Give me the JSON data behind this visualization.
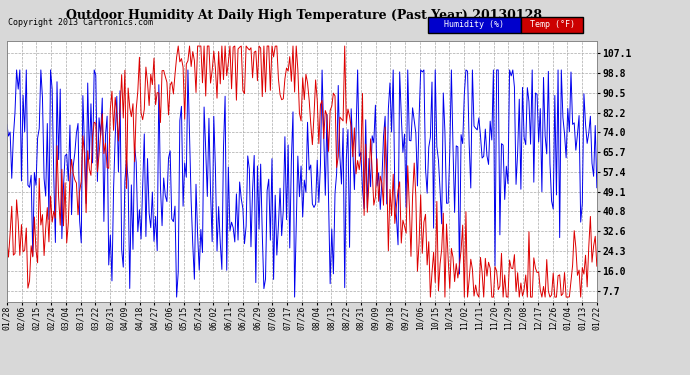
{
  "title": "Outdoor Humidity At Daily High Temperature (Past Year) 20130128",
  "copyright": "Copyright 2013 Cartronics.com",
  "yticks": [
    107.1,
    98.8,
    90.5,
    82.2,
    74.0,
    65.7,
    57.4,
    49.1,
    40.8,
    32.6,
    24.3,
    16.0,
    7.7
  ],
  "ylim": [
    3.0,
    112.0
  ],
  "bg_color": "#d8d8d8",
  "plot_bg_color": "#ffffff",
  "grid_color": "#aaaaaa",
  "humidity_color": "#0000ee",
  "temp_color": "#dd0000",
  "legend_humidity_bg": "#0000cc",
  "legend_temp_bg": "#cc0000",
  "xtick_labels": [
    "01/28",
    "02/06",
    "02/15",
    "02/24",
    "03/04",
    "03/13",
    "03/22",
    "03/31",
    "04/09",
    "04/18",
    "04/27",
    "05/06",
    "05/15",
    "05/24",
    "06/02",
    "06/11",
    "06/20",
    "06/29",
    "07/08",
    "07/17",
    "07/26",
    "08/04",
    "08/13",
    "08/22",
    "08/31",
    "09/09",
    "09/18",
    "09/27",
    "10/06",
    "10/15",
    "10/24",
    "11/02",
    "11/11",
    "11/20",
    "11/29",
    "12/08",
    "12/17",
    "12/26",
    "01/04",
    "01/13",
    "01/22"
  ],
  "num_points": 366,
  "temp_seed": 10,
  "hum_seed": 20
}
